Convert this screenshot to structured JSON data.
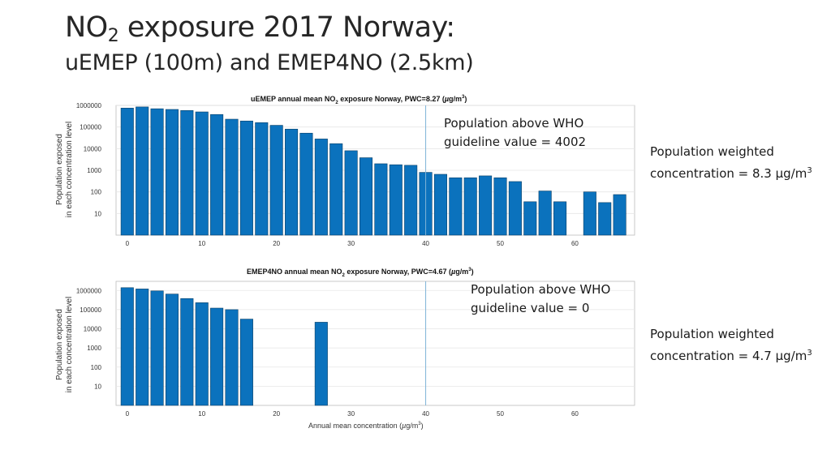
{
  "slide": {
    "title_prefix": "NO",
    "title_sub": "2",
    "title_rest": " exposure 2017 Norway:",
    "subtitle": "uEMEP (100m) and EMEP4NO (2.5km)"
  },
  "colors": {
    "bar": "#0b72bd",
    "bar_edge": "#0a3f66",
    "who_line": "#7fb3d8",
    "grid": "#e6e6e6"
  },
  "chart_data": [
    {
      "type": "bar",
      "title": "uEMEP annual mean NO2 exposure Norway, PWC=8.27 (µg/m3)",
      "title_parts": {
        "a": "uEMEP annual mean NO",
        "sub": "2",
        "b": " exposure Norway, PWC=8.27 (",
        "mu": "µ",
        "c": "g/m",
        "sup": "3",
        "d": ")"
      },
      "ylabel_line1": "Population exposed",
      "ylabel_line2": "in each concentration level",
      "xlabel": "",
      "yscale": "log",
      "ylim": [
        1,
        1000000
      ],
      "xlim": [
        -1.5,
        68
      ],
      "xticks": [
        0,
        10,
        20,
        30,
        40,
        50,
        60
      ],
      "yticks": [
        10,
        100,
        1000,
        10000,
        100000,
        1000000
      ],
      "ytick_labels": [
        "10",
        "100",
        "1000",
        "10000",
        "100000",
        "1000000"
      ],
      "grid": true,
      "who_guideline": 40,
      "x": [
        0,
        2,
        4,
        6,
        8,
        10,
        12,
        14,
        16,
        18,
        20,
        22,
        24,
        26,
        28,
        30,
        32,
        34,
        36,
        38,
        40,
        42,
        44,
        46,
        48,
        50,
        52,
        54,
        56,
        58,
        60,
        62,
        64,
        66
      ],
      "values": [
        750000,
        850000,
        700000,
        650000,
        580000,
        500000,
        380000,
        230000,
        190000,
        160000,
        120000,
        80000,
        52000,
        28000,
        17000,
        8000,
        3800,
        2000,
        1800,
        1700,
        800,
        650,
        450,
        450,
        550,
        450,
        300,
        35,
        110,
        35,
        null,
        100,
        32,
        75
      ],
      "annotation_line1": "Population above WHO",
      "annotation_line2": "guideline value = 4002",
      "pwc_line1": "Population weighted",
      "pwc_line2": "concentration =  8.3 µg/m",
      "pwc_sup": "3"
    },
    {
      "type": "bar",
      "title": "EMEP4NO annual mean NO2 exposure Norway, PWC=4.67 (µg/m3)",
      "title_parts": {
        "a": "EMEP4NO annual mean NO",
        "sub": "2",
        "b": " exposure Norway, PWC=4.67 (",
        "mu": "µ",
        "c": "g/m",
        "sup": "3",
        "d": ")"
      },
      "ylabel_line1": "Population exposed",
      "ylabel_line2": "in each concentration level",
      "xlabel": "Annual mean concentration (µg/m3)",
      "xlabel_parts": {
        "a": "Annual mean concentration (",
        "mu": "µ",
        "b": "g/m",
        "sup": "3",
        "c": ")"
      },
      "yscale": "log",
      "ylim": [
        1,
        3000000
      ],
      "xlim": [
        -1.5,
        68
      ],
      "xticks": [
        0,
        10,
        20,
        30,
        40,
        50,
        60
      ],
      "yticks": [
        10,
        100,
        1000,
        10000,
        100000,
        1000000
      ],
      "ytick_labels": [
        "10",
        "100",
        "1000",
        "10000",
        "100000",
        "1000000"
      ],
      "grid": true,
      "who_guideline": 40,
      "x": [
        0,
        2,
        4,
        6,
        8,
        10,
        12,
        14,
        16,
        26
      ],
      "values": [
        1400000,
        1200000,
        950000,
        650000,
        380000,
        230000,
        120000,
        100000,
        32000,
        22000
      ],
      "annotation_line1": "Population above WHO",
      "annotation_line2": "guideline value = 0",
      "pwc_line1": "Population weighted",
      "pwc_line2": "concentration =  4.7 µg/m",
      "pwc_sup": "3"
    }
  ]
}
